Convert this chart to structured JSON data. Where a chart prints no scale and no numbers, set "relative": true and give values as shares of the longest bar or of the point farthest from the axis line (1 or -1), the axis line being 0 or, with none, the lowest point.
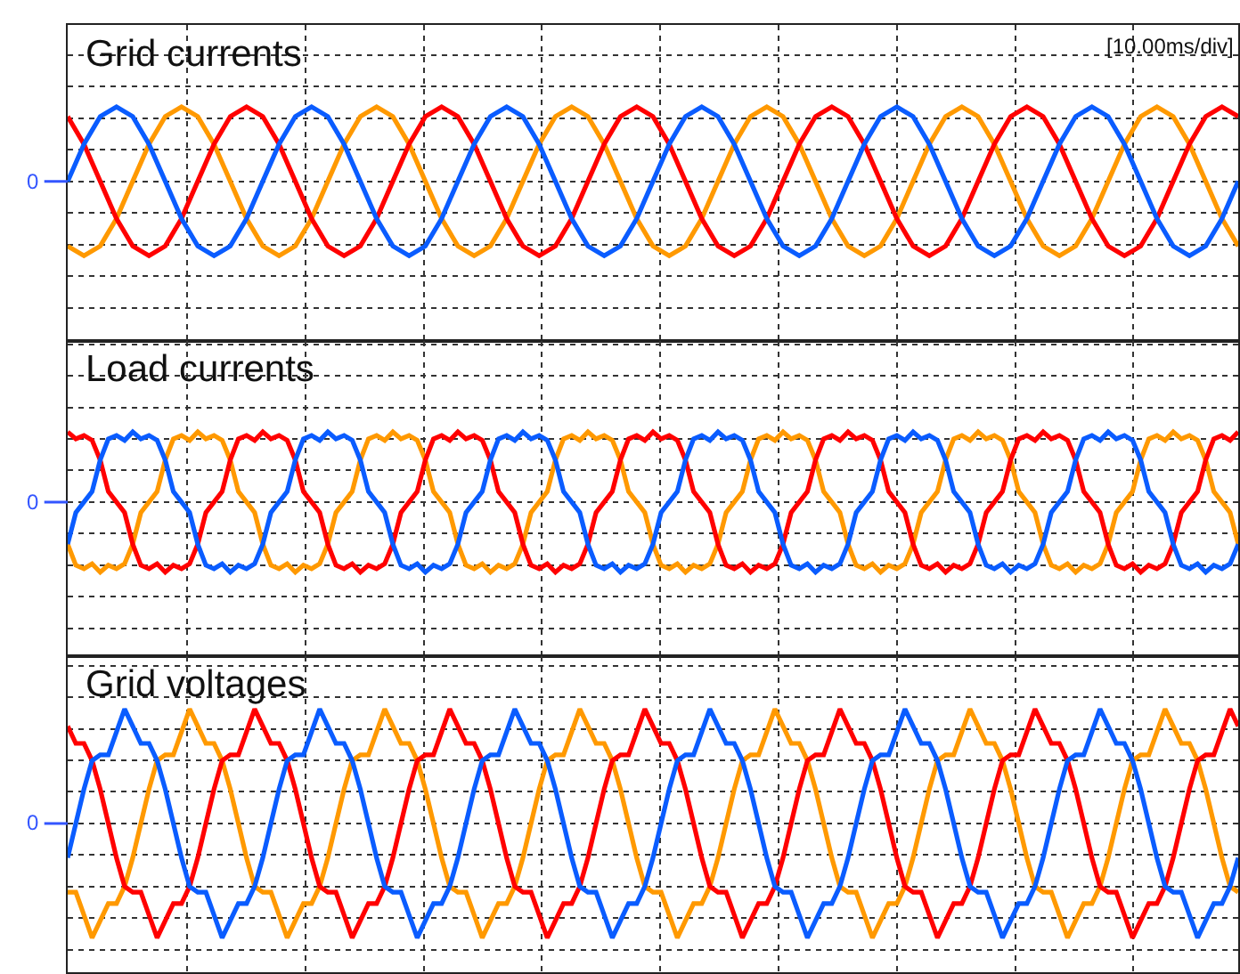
{
  "chart_data": [
    {
      "type": "line",
      "title": "Grid currents",
      "annotations": [
        "[10.00ms/div]"
      ],
      "relative": true,
      "grid": true,
      "ref_lines": [
        {
          "axis": "y",
          "value": 0,
          "label": "0"
        }
      ],
      "categories": [
        null,
        null,
        null,
        null,
        null,
        null,
        null,
        null,
        null,
        null,
        null,
        null,
        null,
        null,
        null,
        null,
        null,
        null,
        null,
        null,
        null,
        null,
        null,
        null,
        null,
        null,
        null,
        null,
        null,
        null,
        null,
        null,
        null,
        null,
        null,
        null,
        null,
        null,
        null,
        null,
        null,
        null,
        null,
        null,
        null,
        null,
        null,
        null,
        null,
        null,
        null,
        null,
        null,
        null,
        null,
        null,
        null,
        null,
        null,
        null,
        null,
        null,
        null,
        null,
        null,
        null,
        null,
        null,
        null,
        null,
        null,
        null,
        null
      ],
      "series": [
        {
          "color": "#ff9900",
          "values": [
            -0.87,
            -1,
            -0.87,
            -0.5,
            0,
            0.5,
            0.87,
            1,
            0.87,
            0.5,
            0,
            -0.5,
            -0.87,
            -1,
            -0.87,
            -0.5,
            0,
            0.5,
            0.87,
            1,
            0.87,
            0.5,
            0,
            -0.5,
            -0.87,
            -1,
            -0.87,
            -0.5,
            0,
            0.5,
            0.87,
            1,
            0.87,
            0.5,
            0,
            -0.5,
            -0.87,
            -1,
            -0.87,
            -0.5,
            0,
            0.5,
            0.87,
            1,
            0.87,
            0.5,
            0,
            -0.5,
            -0.87,
            -1,
            -0.87,
            -0.5,
            0,
            0.5,
            0.87,
            1,
            0.87,
            0.5,
            0,
            -0.5,
            -0.87,
            -1,
            -0.87,
            -0.5,
            0,
            0.5,
            0.87,
            1,
            0.87,
            0.5,
            0,
            -0.5,
            -0.87
          ]
        },
        {
          "color": "#ff0000",
          "values": [
            0.87,
            0.5,
            0,
            -0.5,
            -0.87,
            -1,
            -0.87,
            -0.5,
            0,
            0.5,
            0.87,
            1,
            0.87,
            0.5,
            0,
            -0.5,
            -0.87,
            -1,
            -0.87,
            -0.5,
            0,
            0.5,
            0.87,
            1,
            0.87,
            0.5,
            0,
            -0.5,
            -0.87,
            -1,
            -0.87,
            -0.5,
            0,
            0.5,
            0.87,
            1,
            0.87,
            0.5,
            0,
            -0.5,
            -0.87,
            -1,
            -0.87,
            -0.5,
            0,
            0.5,
            0.87,
            1,
            0.87,
            0.5,
            0,
            -0.5,
            -0.87,
            -1,
            -0.87,
            -0.5,
            0,
            0.5,
            0.87,
            1,
            0.87,
            0.5,
            0,
            -0.5,
            -0.87,
            -1,
            -0.87,
            -0.5,
            0,
            0.5,
            0.87,
            1,
            0.87
          ]
        },
        {
          "color": "#0a5cff",
          "values": [
            0,
            0.5,
            0.87,
            1,
            0.87,
            0.5,
            0,
            -0.5,
            -0.87,
            -1,
            -0.87,
            -0.5,
            0,
            0.5,
            0.87,
            1,
            0.87,
            0.5,
            0,
            -0.5,
            -0.87,
            -1,
            -0.87,
            -0.5,
            0,
            0.5,
            0.87,
            1,
            0.87,
            0.5,
            0,
            -0.5,
            -0.87,
            -1,
            -0.87,
            -0.5,
            0,
            0.5,
            0.87,
            1,
            0.87,
            0.5,
            0,
            -0.5,
            -0.87,
            -1,
            -0.87,
            -0.5,
            0,
            0.5,
            0.87,
            1,
            0.87,
            0.5,
            0,
            -0.5,
            -0.87,
            -1,
            -0.87,
            -0.5,
            0,
            0.5,
            0.87,
            1,
            0.87,
            0.5,
            0,
            -0.5,
            -0.87,
            -1,
            -0.87,
            -0.5,
            0
          ]
        }
      ]
    },
    {
      "type": "line",
      "title": "Load currents",
      "relative": true,
      "grid": true,
      "ref_lines": [
        {
          "axis": "y",
          "value": 0,
          "label": "0"
        }
      ],
      "categories": [
        null,
        null,
        null,
        null,
        null,
        null,
        null,
        null,
        null,
        null,
        null,
        null,
        null,
        null,
        null,
        null,
        null,
        null,
        null,
        null,
        null,
        null,
        null,
        null,
        null,
        null,
        null,
        null,
        null,
        null,
        null,
        null,
        null,
        null,
        null,
        null,
        null,
        null,
        null,
        null,
        null,
        null,
        null,
        null,
        null,
        null,
        null,
        null,
        null,
        null,
        null,
        null,
        null,
        null,
        null,
        null,
        null,
        null,
        null,
        null,
        null,
        null,
        null,
        null,
        null,
        null,
        null,
        null,
        null,
        null,
        null,
        null,
        null,
        null,
        null,
        null,
        null,
        null,
        null,
        null,
        null,
        null,
        null,
        null,
        null,
        null,
        null,
        null,
        null,
        null,
        null,
        null,
        null,
        null,
        null,
        null,
        null,
        null,
        null,
        null,
        null,
        null,
        null,
        null,
        null,
        null,
        null,
        null,
        null,
        null,
        null,
        null,
        null,
        null,
        null,
        null,
        null,
        null,
        null,
        null,
        null,
        null,
        null,
        null,
        null,
        null,
        null,
        null,
        null,
        null,
        null,
        null,
        null,
        null,
        null,
        null,
        null,
        null,
        null,
        null,
        null,
        null,
        null,
        null,
        null
      ],
      "series": [
        {
          "color": "#ff9900",
          "values": [
            -0.6,
            -0.9,
            -0.95,
            -0.88,
            -1,
            -0.9,
            -0.95,
            -0.88,
            -0.6,
            -0.15,
            0,
            0.15,
            0.6,
            0.9,
            0.95,
            0.88,
            1,
            0.9,
            0.95,
            0.88,
            0.6,
            0.15,
            0,
            -0.15,
            -0.6,
            -0.9,
            -0.95,
            -0.88,
            -1,
            -0.9,
            -0.95,
            -0.88,
            -0.6,
            -0.15,
            0,
            0.15,
            0.6,
            0.9,
            0.95,
            0.88,
            1,
            0.9,
            0.95,
            0.88,
            0.6,
            0.15,
            0,
            -0.15,
            -0.6,
            -0.9,
            -0.95,
            -0.88,
            -1,
            -0.9,
            -0.95,
            -0.88,
            -0.6,
            -0.15,
            0,
            0.15,
            0.6,
            0.9,
            0.95,
            0.88,
            1,
            0.9,
            0.95,
            0.88,
            0.6,
            0.15,
            0,
            -0.15,
            -0.6,
            -0.9,
            -0.95,
            -0.88,
            -1,
            -0.9,
            -0.95,
            -0.88,
            -0.6,
            -0.15,
            0,
            0.15,
            0.6,
            0.9,
            0.95,
            0.88,
            1,
            0.9,
            0.95,
            0.88,
            0.6,
            0.15,
            0,
            -0.15,
            -0.6,
            -0.9,
            -0.95,
            -0.88,
            -1,
            -0.9,
            -0.95,
            -0.88,
            -0.6,
            -0.15,
            0,
            0.15,
            0.6,
            0.9,
            0.95,
            0.88,
            1,
            0.9,
            0.95,
            0.88,
            0.6,
            0.15,
            0,
            -0.15,
            -0.6,
            -0.9,
            -0.95,
            -0.88,
            -1,
            -0.9,
            -0.95,
            -0.88,
            -0.6,
            -0.15,
            0,
            0.15,
            0.6,
            0.9,
            0.95,
            0.88,
            1,
            0.9,
            0.95,
            0.88,
            0.6,
            0.15,
            0,
            -0.15,
            -0.6
          ]
        },
        {
          "color": "#ff0000",
          "values": [
            1,
            0.9,
            0.95,
            0.88,
            0.6,
            0.15,
            0,
            -0.15,
            -0.6,
            -0.9,
            -0.95,
            -0.88,
            -1,
            -0.9,
            -0.95,
            -0.88,
            -0.6,
            -0.15,
            0,
            0.15,
            0.6,
            0.9,
            0.95,
            0.88,
            1,
            0.9,
            0.95,
            0.88,
            0.6,
            0.15,
            0,
            -0.15,
            -0.6,
            -0.9,
            -0.95,
            -0.88,
            -1,
            -0.9,
            -0.95,
            -0.88,
            -0.6,
            -0.15,
            0,
            0.15,
            0.6,
            0.9,
            0.95,
            0.88,
            1,
            0.9,
            0.95,
            0.88,
            0.6,
            0.15,
            0,
            -0.15,
            -0.6,
            -0.9,
            -0.95,
            -0.88,
            -1,
            -0.9,
            -0.95,
            -0.88,
            -0.6,
            -0.15,
            0,
            0.15,
            0.6,
            0.9,
            0.95,
            0.88,
            1,
            0.9,
            0.95,
            0.88,
            0.6,
            0.15,
            0,
            -0.15,
            -0.6,
            -0.9,
            -0.95,
            -0.88,
            -1,
            -0.9,
            -0.95,
            -0.88,
            -0.6,
            -0.15,
            0,
            0.15,
            0.6,
            0.9,
            0.95,
            0.88,
            1,
            0.9,
            0.95,
            0.88,
            0.6,
            0.15,
            0,
            -0.15,
            -0.6,
            -0.9,
            -0.95,
            -0.88,
            -1,
            -0.9,
            -0.95,
            -0.88,
            -0.6,
            -0.15,
            0,
            0.15,
            0.6,
            0.9,
            0.95,
            0.88,
            1,
            0.9,
            0.95,
            0.88,
            0.6,
            0.15,
            0,
            -0.15,
            -0.6,
            -0.9,
            -0.95,
            -0.88,
            -1,
            -0.9,
            -0.95,
            -0.88,
            -0.6,
            -0.15,
            0,
            0.15,
            0.6,
            0.9,
            0.95,
            0.88,
            1
          ]
        },
        {
          "color": "#0a5cff",
          "values": [
            -0.6,
            -0.15,
            0,
            0.15,
            0.6,
            0.9,
            0.95,
            0.88,
            1,
            0.9,
            0.95,
            0.88,
            0.6,
            0.15,
            0,
            -0.15,
            -0.6,
            -0.9,
            -0.95,
            -0.88,
            -1,
            -0.9,
            -0.95,
            -0.88,
            -0.6,
            -0.15,
            0,
            0.15,
            0.6,
            0.9,
            0.95,
            0.88,
            1,
            0.9,
            0.95,
            0.88,
            0.6,
            0.15,
            0,
            -0.15,
            -0.6,
            -0.9,
            -0.95,
            -0.88,
            -1,
            -0.9,
            -0.95,
            -0.88,
            -0.6,
            -0.15,
            0,
            0.15,
            0.6,
            0.9,
            0.95,
            0.88,
            1,
            0.9,
            0.95,
            0.88,
            0.6,
            0.15,
            0,
            -0.15,
            -0.6,
            -0.9,
            -0.95,
            -0.88,
            -1,
            -0.9,
            -0.95,
            -0.88,
            -0.6,
            -0.15,
            0,
            0.15,
            0.6,
            0.9,
            0.95,
            0.88,
            1,
            0.9,
            0.95,
            0.88,
            0.6,
            0.15,
            0,
            -0.15,
            -0.6,
            -0.9,
            -0.95,
            -0.88,
            -1,
            -0.9,
            -0.95,
            -0.88,
            -0.6,
            -0.15,
            0,
            0.15,
            0.6,
            0.9,
            0.95,
            0.88,
            1,
            0.9,
            0.95,
            0.88,
            0.6,
            0.15,
            0,
            -0.15,
            -0.6,
            -0.9,
            -0.95,
            -0.88,
            -1,
            -0.9,
            -0.95,
            -0.88,
            -0.6,
            -0.15,
            0,
            0.15,
            0.6,
            0.9,
            0.95,
            0.88,
            1,
            0.9,
            0.95,
            0.88,
            0.6,
            0.15,
            0,
            -0.15,
            -0.6,
            -0.9,
            -0.95,
            -0.88,
            -1,
            -0.9,
            -0.95,
            -0.88,
            -0.6
          ]
        }
      ]
    },
    {
      "type": "line",
      "title": "Grid voltages",
      "relative": true,
      "grid": true,
      "ref_lines": [
        {
          "axis": "y",
          "value": 0,
          "label": "0"
        }
      ],
      "categories": [
        null,
        null,
        null,
        null,
        null,
        null,
        null,
        null,
        null,
        null,
        null,
        null,
        null,
        null,
        null,
        null,
        null,
        null,
        null,
        null,
        null,
        null,
        null,
        null,
        null,
        null,
        null,
        null,
        null,
        null,
        null,
        null,
        null,
        null,
        null,
        null,
        null,
        null,
        null,
        null,
        null,
        null,
        null,
        null,
        null,
        null,
        null,
        null,
        null,
        null,
        null,
        null,
        null,
        null,
        null,
        null,
        null,
        null,
        null,
        null,
        null,
        null,
        null,
        null,
        null,
        null,
        null,
        null,
        null,
        null,
        null,
        null,
        null,
        null,
        null,
        null,
        null,
        null,
        null,
        null,
        null,
        null,
        null,
        null,
        null,
        null,
        null,
        null,
        null,
        null,
        null,
        null,
        null,
        null,
        null,
        null,
        null,
        null,
        null,
        null,
        null,
        null,
        null,
        null,
        null,
        null,
        null,
        null,
        null,
        null,
        null,
        null,
        null,
        null,
        null,
        null,
        null,
        null,
        null,
        null,
        null,
        null,
        null,
        null,
        null,
        null,
        null,
        null,
        null,
        null,
        null,
        null,
        null,
        null,
        null,
        null,
        null,
        null,
        null,
        null,
        null,
        null,
        null,
        null,
        null
      ],
      "series": [
        {
          "color": "#ff9900",
          "values": [
            -0.6,
            -0.6,
            -0.8,
            -1,
            -0.85,
            -0.7,
            -0.7,
            -0.55,
            -0.3,
            0,
            0.3,
            0.55,
            0.6,
            0.6,
            0.8,
            1,
            0.85,
            0.7,
            0.7,
            0.55,
            0.3,
            0,
            -0.3,
            -0.55,
            -0.6,
            -0.6,
            -0.8,
            -1,
            -0.85,
            -0.7,
            -0.7,
            -0.55,
            -0.3,
            0,
            0.3,
            0.55,
            0.6,
            0.6,
            0.8,
            1,
            0.85,
            0.7,
            0.7,
            0.55,
            0.3,
            0,
            -0.3,
            -0.55,
            -0.6,
            -0.6,
            -0.8,
            -1,
            -0.85,
            -0.7,
            -0.7,
            -0.55,
            -0.3,
            0,
            0.3,
            0.55,
            0.6,
            0.6,
            0.8,
            1,
            0.85,
            0.7,
            0.7,
            0.55,
            0.3,
            0,
            -0.3,
            -0.55,
            -0.6,
            -0.6,
            -0.8,
            -1,
            -0.85,
            -0.7,
            -0.7,
            -0.55,
            -0.3,
            0,
            0.3,
            0.55,
            0.6,
            0.6,
            0.8,
            1,
            0.85,
            0.7,
            0.7,
            0.55,
            0.3,
            0,
            -0.3,
            -0.55,
            -0.6,
            -0.6,
            -0.8,
            -1,
            -0.85,
            -0.7,
            -0.7,
            -0.55,
            -0.3,
            0,
            0.3,
            0.55,
            0.6,
            0.6,
            0.8,
            1,
            0.85,
            0.7,
            0.7,
            0.55,
            0.3,
            0,
            -0.3,
            -0.55,
            -0.6,
            -0.6,
            -0.8,
            -1,
            -0.85,
            -0.7,
            -0.7,
            -0.55,
            -0.3,
            0,
            0.3,
            0.55,
            0.6,
            0.6,
            0.8,
            1,
            0.85,
            0.7,
            0.7,
            0.55,
            0.3,
            0,
            -0.3,
            -0.55,
            -0.6
          ]
        },
        {
          "color": "#ff0000",
          "values": [
            0.85,
            0.7,
            0.7,
            0.55,
            0.3,
            0,
            -0.3,
            -0.55,
            -0.6,
            -0.6,
            -0.8,
            -1,
            -0.85,
            -0.7,
            -0.7,
            -0.55,
            -0.3,
            0,
            0.3,
            0.55,
            0.6,
            0.6,
            0.8,
            1,
            0.85,
            0.7,
            0.7,
            0.55,
            0.3,
            0,
            -0.3,
            -0.55,
            -0.6,
            -0.6,
            -0.8,
            -1,
            -0.85,
            -0.7,
            -0.7,
            -0.55,
            -0.3,
            0,
            0.3,
            0.55,
            0.6,
            0.6,
            0.8,
            1,
            0.85,
            0.7,
            0.7,
            0.55,
            0.3,
            0,
            -0.3,
            -0.55,
            -0.6,
            -0.6,
            -0.8,
            -1,
            -0.85,
            -0.7,
            -0.7,
            -0.55,
            -0.3,
            0,
            0.3,
            0.55,
            0.6,
            0.6,
            0.8,
            1,
            0.85,
            0.7,
            0.7,
            0.55,
            0.3,
            0,
            -0.3,
            -0.55,
            -0.6,
            -0.6,
            -0.8,
            -1,
            -0.85,
            -0.7,
            -0.7,
            -0.55,
            -0.3,
            0,
            0.3,
            0.55,
            0.6,
            0.6,
            0.8,
            1,
            0.85,
            0.7,
            0.7,
            0.55,
            0.3,
            0,
            -0.3,
            -0.55,
            -0.6,
            -0.6,
            -0.8,
            -1,
            -0.85,
            -0.7,
            -0.7,
            -0.55,
            -0.3,
            0,
            0.3,
            0.55,
            0.6,
            0.6,
            0.8,
            1,
            0.85,
            0.7,
            0.7,
            0.55,
            0.3,
            0,
            -0.3,
            -0.55,
            -0.6,
            -0.6,
            -0.8,
            -1,
            -0.85,
            -0.7,
            -0.7,
            -0.55,
            -0.3,
            0,
            0.3,
            0.55,
            0.6,
            0.6,
            0.8,
            1,
            0.85
          ]
        },
        {
          "color": "#0a5cff",
          "values": [
            -0.3,
            0,
            0.3,
            0.55,
            0.6,
            0.6,
            0.8,
            1,
            0.85,
            0.7,
            0.7,
            0.55,
            0.3,
            0,
            -0.3,
            -0.55,
            -0.6,
            -0.6,
            -0.8,
            -1,
            -0.85,
            -0.7,
            -0.7,
            -0.55,
            -0.3,
            0,
            0.3,
            0.55,
            0.6,
            0.6,
            0.8,
            1,
            0.85,
            0.7,
            0.7,
            0.55,
            0.3,
            0,
            -0.3,
            -0.55,
            -0.6,
            -0.6,
            -0.8,
            -1,
            -0.85,
            -0.7,
            -0.7,
            -0.55,
            -0.3,
            0,
            0.3,
            0.55,
            0.6,
            0.6,
            0.8,
            1,
            0.85,
            0.7,
            0.7,
            0.55,
            0.3,
            0,
            -0.3,
            -0.55,
            -0.6,
            -0.6,
            -0.8,
            -1,
            -0.85,
            -0.7,
            -0.7,
            -0.55,
            -0.3,
            0,
            0.3,
            0.55,
            0.6,
            0.6,
            0.8,
            1,
            0.85,
            0.7,
            0.7,
            0.55,
            0.3,
            0,
            -0.3,
            -0.55,
            -0.6,
            -0.6,
            -0.8,
            -1,
            -0.85,
            -0.7,
            -0.7,
            -0.55,
            -0.3,
            0,
            0.3,
            0.55,
            0.6,
            0.6,
            0.8,
            1,
            0.85,
            0.7,
            0.7,
            0.55,
            0.3,
            0,
            -0.3,
            -0.55,
            -0.6,
            -0.6,
            -0.8,
            -1,
            -0.85,
            -0.7,
            -0.7,
            -0.55,
            -0.3,
            0,
            0.3,
            0.55,
            0.6,
            0.6,
            0.8,
            1,
            0.85,
            0.7,
            0.7,
            0.55,
            0.3,
            0,
            -0.3,
            -0.55,
            -0.6,
            -0.6,
            -0.8,
            -1,
            -0.85,
            -0.7,
            -0.7,
            -0.55,
            -0.3
          ]
        }
      ]
    }
  ]
}
